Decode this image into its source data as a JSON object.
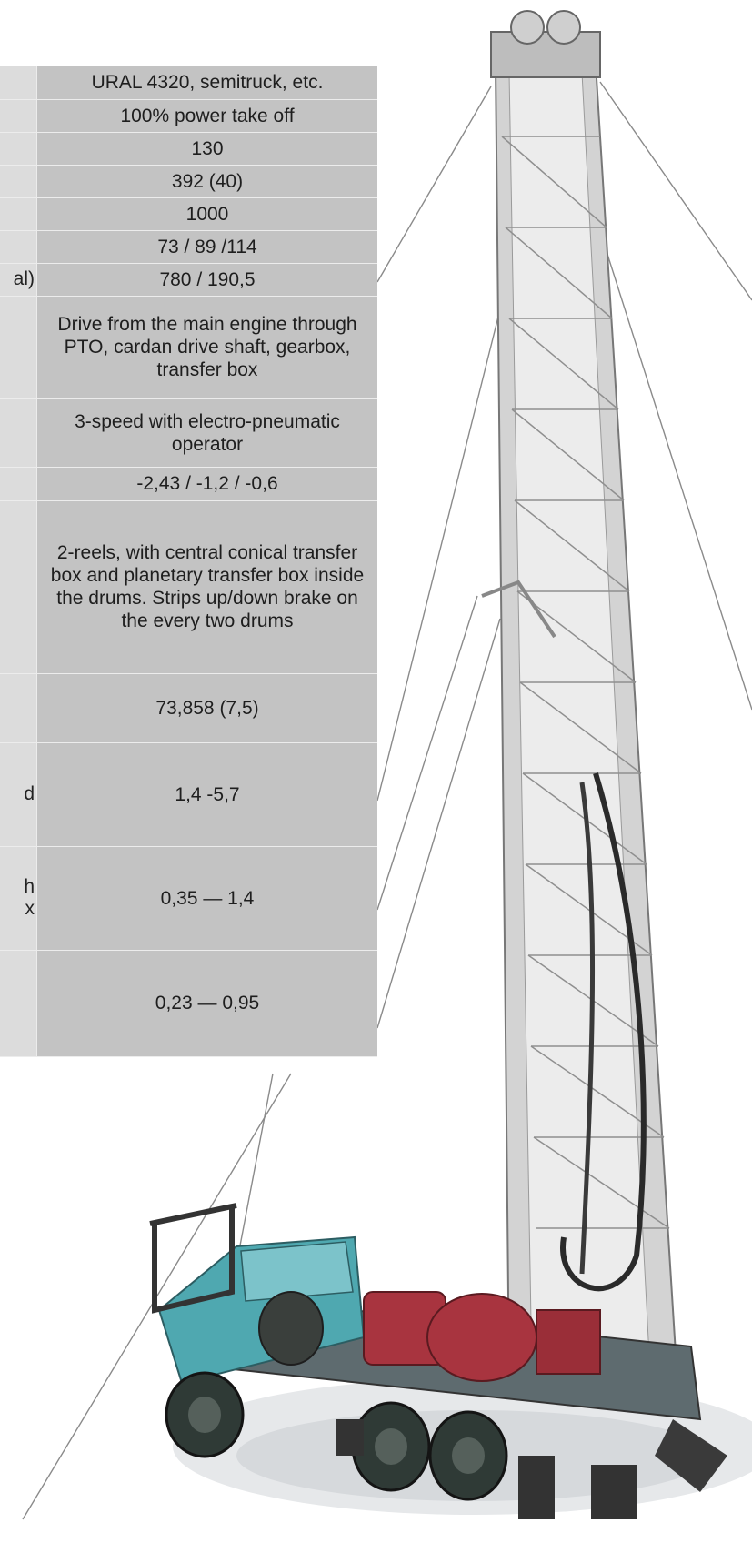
{
  "specs": [
    {
      "label": "",
      "value": "URAL 4320, semitruck, etc."
    },
    {
      "label": "",
      "value": "100% power take off"
    },
    {
      "label": "",
      "value": "130"
    },
    {
      "label": "",
      "value": "392 (40)"
    },
    {
      "label": "",
      "value": "1000"
    },
    {
      "label": "",
      "value": "73 / 89 /114"
    },
    {
      "label": "al)",
      "value": "780 / 190,5"
    },
    {
      "label": "",
      "value": "Drive from the main engine through PTO, cardan drive shaft, gearbox, transfer box"
    },
    {
      "label": "",
      "value": "3-speed with electro-pneumatic operator"
    },
    {
      "label": "",
      "value": "-2,43 / -1,2 / -0,6"
    },
    {
      "label": "",
      "value": "2-reels, with central conical transfer box and planetary transfer box inside the drums. Strips up/down brake on the every two drums"
    },
    {
      "label": "",
      "value": "73,858 (7,5)"
    },
    {
      "label": "d",
      "value": "1,4 -5,7"
    },
    {
      "label": "h\nx",
      "value": "0,35 — 1,4"
    },
    {
      "label": "",
      "value": "0,23 — 0,95"
    }
  ],
  "colors": {
    "label_cell": "#dcdcdc",
    "value_cell": "#c3c3c3",
    "truck_cab": "#4fa8b0",
    "winch": "#a8343f",
    "mast": "#c9c9c9"
  }
}
